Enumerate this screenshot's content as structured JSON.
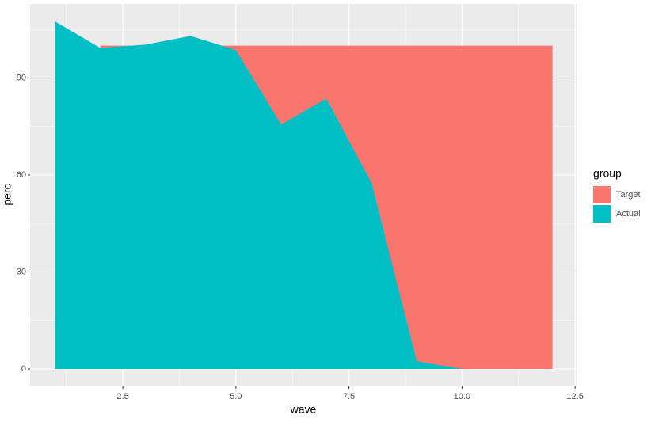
{
  "chart_data": {
    "type": "area",
    "x": [
      1,
      2,
      3,
      4,
      5,
      6,
      7,
      8,
      9,
      10,
      11,
      12
    ],
    "series": [
      {
        "name": "Target",
        "color": "#F8766D",
        "values": [
          null,
          100,
          100,
          100,
          100,
          100,
          100,
          100,
          100,
          100,
          100,
          100
        ]
      },
      {
        "name": "Actual",
        "color": "#00BFC4",
        "values": [
          107.5,
          99.3,
          100.3,
          103,
          98.6,
          75.6,
          83.6,
          57.5,
          2.4,
          0,
          0,
          0
        ]
      }
    ],
    "xlabel": "wave",
    "ylabel": "perc",
    "legend_title": "group",
    "xlim": [
      0.45,
      12.55
    ],
    "xticks": [
      2.5,
      {
        "value": 5,
        "label": "5.0"
      },
      7.5,
      {
        "value": 10,
        "label": "10.0"
      },
      12.5
    ],
    "ylim": [
      -5.375,
      112.875
    ],
    "yticks": [
      0,
      30,
      60,
      90
    ],
    "grid": true,
    "legend": "right"
  }
}
